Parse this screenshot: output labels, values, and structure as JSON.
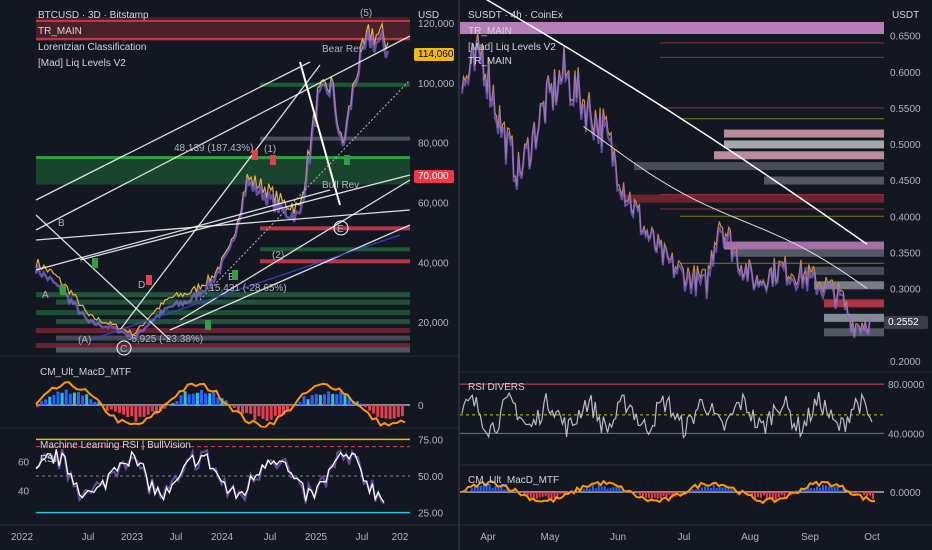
{
  "left": {
    "title": "BTCUSD · 3D · Bitstamp",
    "indicators": [
      "TR_MAIN",
      "Lorentzian Classification",
      "[Mad] Liq Levels V2"
    ],
    "currency": "USD",
    "price_labels": [
      "120,000",
      "100,000",
      "80,000",
      "60,000",
      "40,000",
      "20,000"
    ],
    "current_price": "114,060",
    "red_level": "70,000",
    "x_labels": [
      "2022",
      "Jul",
      "2023",
      "Jul",
      "2024",
      "Jul",
      "2025",
      "Jul",
      "202"
    ],
    "annotations": {
      "wave5": "(5)",
      "bear_rev": "Bear Rev",
      "bull_rev": "Bull Rev",
      "wave1": "(1)",
      "wave2": "(2)",
      "waveC": "C",
      "waveA": "(A)",
      "E": "E",
      "D": "D",
      "B": "B",
      "A": "A",
      "meas1": "48,139 (187.43%)",
      "meas2": "-15,431 (-28.65%)",
      "meas3": "-5,925 (-23.38%)"
    },
    "macd": {
      "title": "CM_Ult_MacD_MTF",
      "zero": "0"
    },
    "rsi": {
      "title": "Machine Learning RSI | BullVision",
      "sub": "RSI",
      "levels_right": [
        "75.00",
        "50.00",
        "25.00"
      ],
      "levels_left": [
        "60",
        "40"
      ]
    }
  },
  "right": {
    "title": "SUSDT · 4h · CoinEx",
    "indicators": [
      "TR_MAIN",
      "[Mad] Liq Levels V2",
      "TR_MAIN"
    ],
    "currency": "USDT",
    "price_labels": [
      "0.6500",
      "0.6000",
      "0.5500",
      "0.5000",
      "0.4500",
      "0.4000",
      "0.3500",
      "0.3000",
      "0.2000"
    ],
    "current_price": "0.2552",
    "x_labels": [
      "Apr",
      "May",
      "Jun",
      "Jul",
      "Aug",
      "Sep",
      "Oct"
    ],
    "rsi": {
      "title": "RSI DIVERS",
      "levels": [
        "80.0000",
        "40.0000"
      ]
    },
    "macd": {
      "title": "CM_Ult_MacD_MTF",
      "zero": "0.0000"
    }
  },
  "chart_data": [
    {
      "type": "line",
      "title": "BTCUSD · 3D · Bitstamp",
      "x": [
        "2022",
        "Jul 2022",
        "2023",
        "Jul 2023",
        "2024",
        "Jul 2024",
        "2025",
        "Jul 2025"
      ],
      "series": [
        {
          "values": [
            38000,
            21000,
            17000,
            30000,
            44000,
            62000,
            95000,
            114060
          ]
        }
      ],
      "ylim": [
        10000,
        125000
      ]
    },
    {
      "type": "line",
      "title": "SUSDT · 4h · CoinEx",
      "x": [
        "Apr",
        "May",
        "Jun",
        "Jul",
        "Aug",
        "Sep",
        "Oct"
      ],
      "series": [
        {
          "values": [
            0.6,
            0.57,
            0.4,
            0.32,
            0.36,
            0.3,
            0.2552
          ]
        }
      ],
      "ylim": [
        0.19,
        0.68
      ]
    }
  ],
  "colors": {
    "bg": "#131722",
    "green_zone": "#1f6b3a",
    "red_zone": "#8b2a35",
    "pink": "#d58fd4",
    "price_badge": "#f0b90b",
    "red_badge": "#f23645"
  }
}
